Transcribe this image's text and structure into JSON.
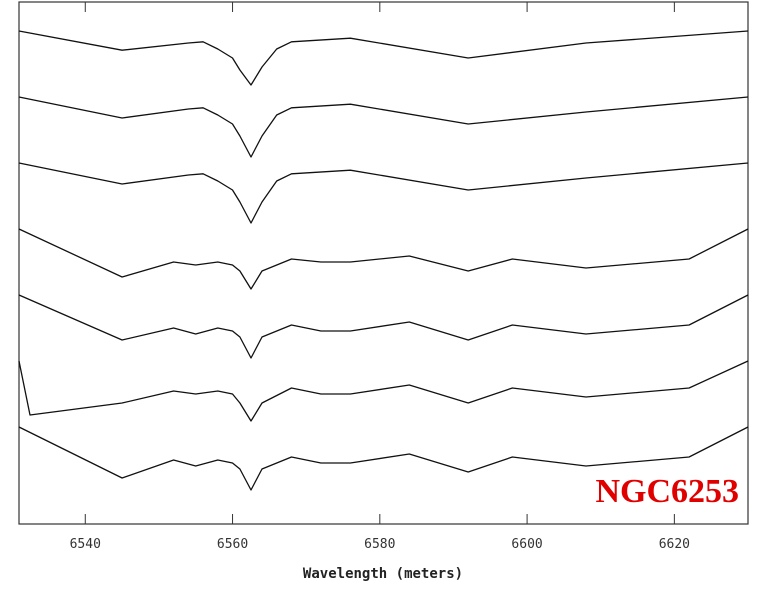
{
  "chart_data": {
    "type": "line",
    "title": "",
    "xlabel": "Wavelength (meters)",
    "ylabel": "",
    "xlim": [
      6531,
      6630
    ],
    "x_ticks": [
      6540,
      6560,
      6580,
      6600,
      6620
    ],
    "x_tick_labels": [
      "6540",
      "6560",
      "6580",
      "6600",
      "6620"
    ],
    "grid": false,
    "legend": "none",
    "annotation": {
      "text": "NGC6253",
      "color": "#e00000",
      "placement": "bottom-right"
    },
    "line_color": "#111111",
    "series": [
      {
        "x": [
          6531,
          6545,
          6554,
          6556,
          6558,
          6560,
          6561,
          6562.5,
          6564,
          6566,
          6568,
          6576,
          6592,
          6608,
          6630
        ],
        "y": [
          0.0,
          -0.32,
          -0.2,
          -0.18,
          -0.3,
          -0.45,
          -0.65,
          -0.9,
          -0.6,
          -0.3,
          -0.18,
          -0.12,
          -0.45,
          -0.2,
          0.0
        ]
      },
      {
        "x": [
          6531,
          6545,
          6554,
          6556,
          6558,
          6560,
          6561,
          6562.5,
          6564,
          6566,
          6568,
          6576,
          6592,
          6608,
          6630
        ],
        "y": [
          0.0,
          -0.35,
          -0.2,
          -0.18,
          -0.3,
          -0.45,
          -0.65,
          -1.0,
          -0.65,
          -0.3,
          -0.18,
          -0.12,
          -0.45,
          -0.25,
          0.0
        ]
      },
      {
        "x": [
          6531,
          6545,
          6554,
          6556,
          6558,
          6560,
          6561,
          6562.5,
          6564,
          6566,
          6568,
          6576,
          6592,
          6608,
          6630
        ],
        "y": [
          0.0,
          -0.35,
          -0.2,
          -0.18,
          -0.3,
          -0.45,
          -0.65,
          -1.0,
          -0.65,
          -0.3,
          -0.18,
          -0.12,
          -0.45,
          -0.25,
          0.0
        ]
      },
      {
        "x": [
          6531,
          6545,
          6552,
          6555,
          6558,
          6560,
          6561,
          6562.5,
          6564,
          6568,
          6572,
          6576,
          6584,
          6592,
          6598,
          6608,
          6622,
          6630
        ],
        "y": [
          0.0,
          -0.8,
          -0.55,
          -0.6,
          -0.55,
          -0.6,
          -0.7,
          -1.0,
          -0.7,
          -0.5,
          -0.55,
          -0.55,
          -0.45,
          -0.7,
          -0.5,
          -0.65,
          -0.5,
          0.0
        ]
      },
      {
        "x": [
          6531,
          6545,
          6552,
          6555,
          6558,
          6560,
          6561,
          6562.5,
          6564,
          6568,
          6572,
          6576,
          6584,
          6592,
          6598,
          6608,
          6622,
          6630
        ],
        "y": [
          0.0,
          -0.75,
          -0.55,
          -0.65,
          -0.55,
          -0.6,
          -0.7,
          -1.05,
          -0.7,
          -0.5,
          -0.6,
          -0.6,
          -0.45,
          -0.75,
          -0.5,
          -0.65,
          -0.5,
          0.0
        ]
      },
      {
        "x": [
          6531,
          6532.5,
          6545,
          6552,
          6555,
          6558,
          6560,
          6561,
          6562.5,
          6564,
          6568,
          6572,
          6576,
          6584,
          6592,
          6598,
          6608,
          6622,
          6630
        ],
        "y": [
          0.0,
          -0.9,
          -0.7,
          -0.5,
          -0.55,
          -0.5,
          -0.55,
          -0.7,
          -1.0,
          -0.7,
          -0.45,
          -0.55,
          -0.55,
          -0.4,
          -0.7,
          -0.45,
          -0.6,
          -0.45,
          0.0
        ]
      },
      {
        "x": [
          6531,
          6545,
          6552,
          6555,
          6558,
          6560,
          6561,
          6562.5,
          6564,
          6568,
          6572,
          6576,
          6584,
          6592,
          6598,
          6608,
          6622,
          6630
        ],
        "y": [
          0.0,
          -0.85,
          -0.55,
          -0.65,
          -0.55,
          -0.6,
          -0.7,
          -1.05,
          -0.7,
          -0.5,
          -0.6,
          -0.6,
          -0.45,
          -0.75,
          -0.5,
          -0.65,
          -0.5,
          0.0
        ]
      }
    ]
  }
}
